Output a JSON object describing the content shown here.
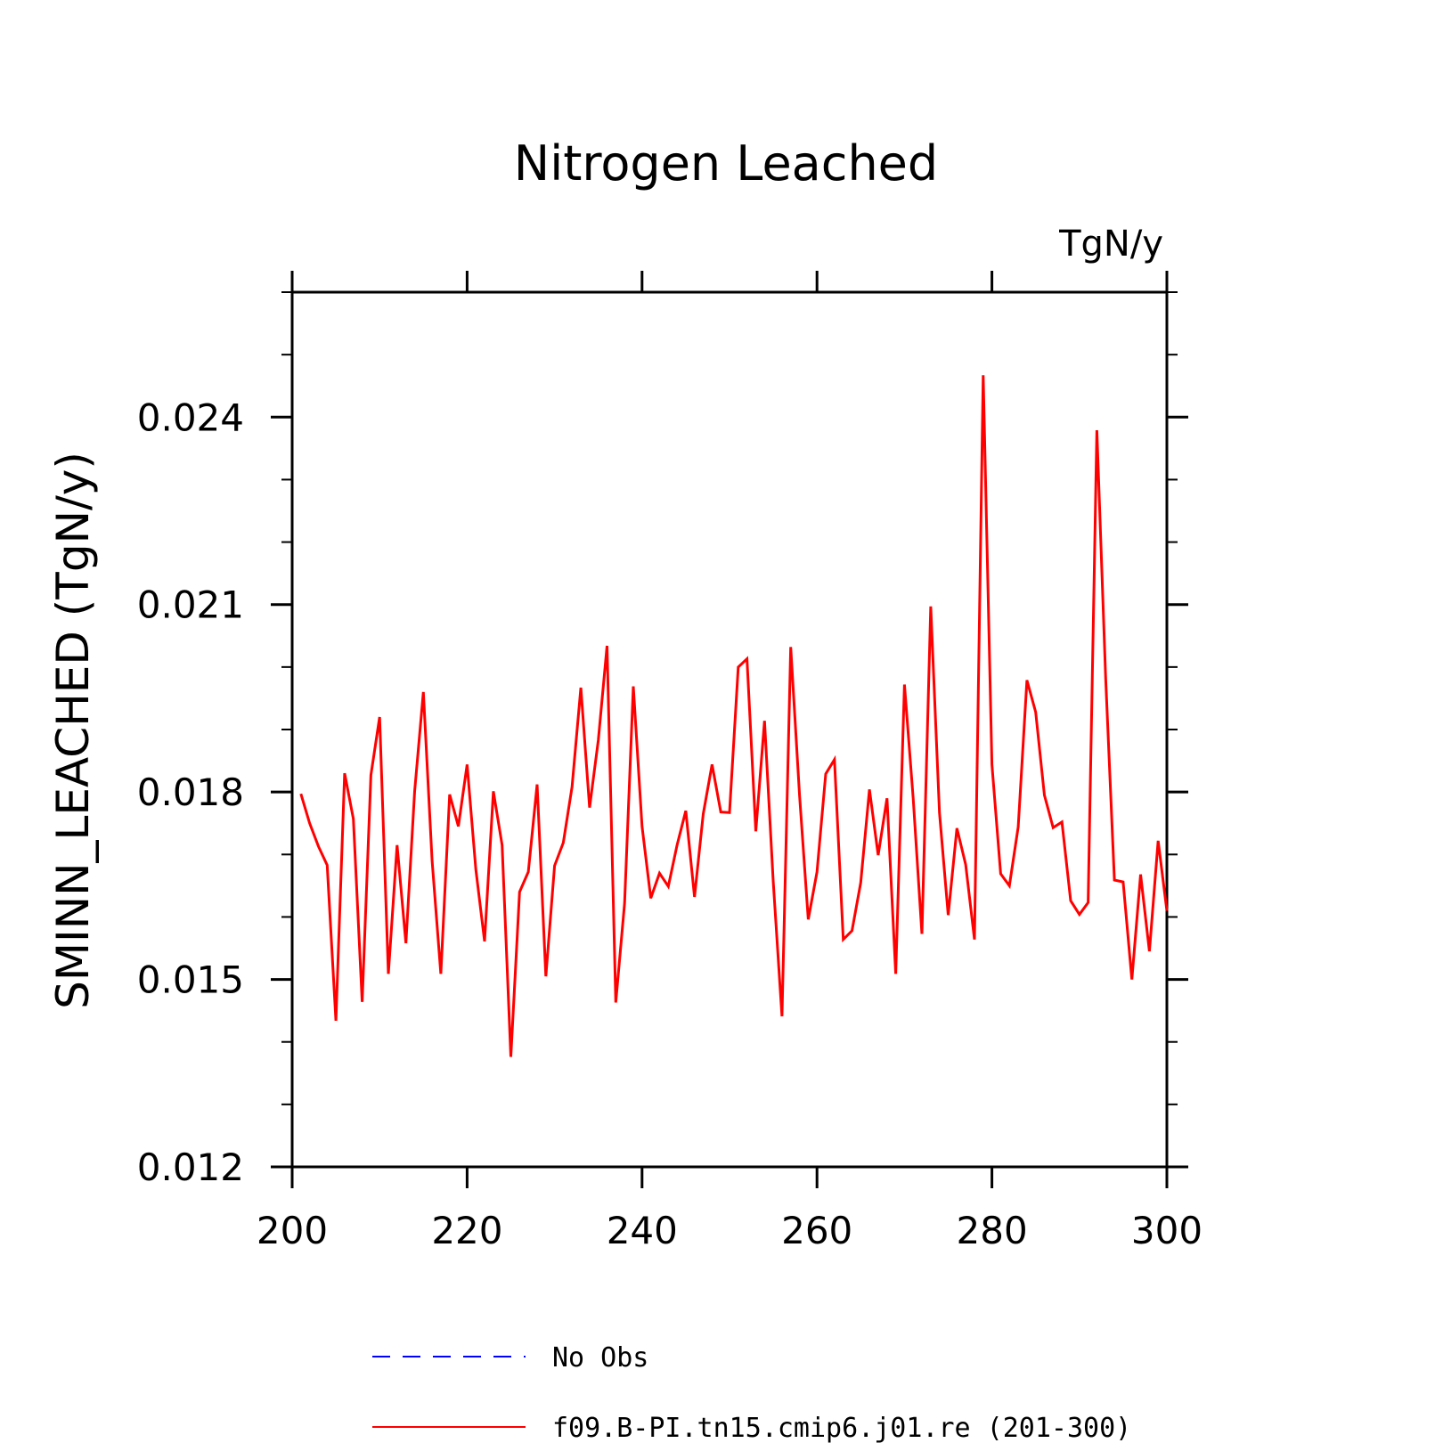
{
  "chart_data": {
    "type": "line",
    "title": "Nitrogen Leached",
    "units_label": "TgN/y",
    "ylabel": "SMINN_LEACHED   (TgN/y)",
    "xlabel": "",
    "xlim": [
      200,
      300
    ],
    "ylim": [
      0.012,
      0.026
    ],
    "x_ticks": [
      200,
      220,
      240,
      260,
      280,
      300
    ],
    "x_tick_labels": [
      "200",
      "220",
      "240",
      "260",
      "280",
      "300"
    ],
    "y_ticks": [
      0.012,
      0.015,
      0.018,
      0.021,
      0.024
    ],
    "y_tick_labels": [
      "0.012",
      "0.015",
      "0.018",
      "0.021",
      "0.024"
    ],
    "legend": [
      {
        "name": "No Obs",
        "color": "#0000ff",
        "style": "dashed"
      },
      {
        "name": "f09.B-PI.tn15.cmip6.j01.re (201-300)",
        "color": "#ff0000",
        "style": "solid"
      }
    ],
    "series": [
      {
        "name": "f09.B-PI.tn15.cmip6.j01.re (201-300)",
        "color": "#ff0000",
        "x": [
          201,
          202,
          203,
          204,
          205,
          206,
          207,
          208,
          209,
          210,
          211,
          212,
          213,
          214,
          215,
          216,
          217,
          218,
          219,
          220,
          221,
          222,
          223,
          224,
          225,
          226,
          227,
          228,
          229,
          230,
          231,
          232,
          233,
          234,
          235,
          236,
          237,
          238,
          239,
          240,
          241,
          242,
          243,
          244,
          245,
          246,
          247,
          248,
          249,
          250,
          251,
          252,
          253,
          254,
          255,
          256,
          257,
          258,
          259,
          260,
          261,
          262,
          263,
          264,
          265,
          266,
          267,
          268,
          269,
          270,
          271,
          272,
          273,
          274,
          275,
          276,
          277,
          278,
          279,
          280,
          281,
          282,
          283,
          284,
          285,
          286,
          287,
          288,
          289,
          290,
          291,
          292,
          293,
          294,
          295,
          296,
          297,
          298,
          299,
          300
        ],
        "values": [
          0.01797,
          0.0175,
          0.01713,
          0.01683,
          0.01434,
          0.0183,
          0.01757,
          0.01464,
          0.01827,
          0.0192,
          0.01509,
          0.01715,
          0.01558,
          0.01801,
          0.0196,
          0.0169,
          0.01509,
          0.01796,
          0.01745,
          0.01844,
          0.01676,
          0.01561,
          0.01801,
          0.01715,
          0.01376,
          0.0164,
          0.01672,
          0.01812,
          0.01505,
          0.01682,
          0.01719,
          0.01808,
          0.01967,
          0.01775,
          0.01883,
          0.02034,
          0.01463,
          0.01622,
          0.01969,
          0.01745,
          0.0163,
          0.0167,
          0.01649,
          0.01715,
          0.0177,
          0.01632,
          0.01765,
          0.01844,
          0.01768,
          0.01767,
          0.02,
          0.02013,
          0.01737,
          0.01914,
          0.01656,
          0.01441,
          0.02032,
          0.01795,
          0.01596,
          0.01672,
          0.01829,
          0.01852,
          0.01564,
          0.01578,
          0.01655,
          0.01804,
          0.01699,
          0.0179,
          0.01509,
          0.01972,
          0.0179,
          0.01573,
          0.02097,
          0.01767,
          0.01603,
          0.01742,
          0.01684,
          0.01564,
          0.02467,
          0.01844,
          0.01669,
          0.0165,
          0.01744,
          0.01979,
          0.01928,
          0.01795,
          0.01743,
          0.01752,
          0.01626,
          0.01604,
          0.01623,
          0.02379,
          0.01982,
          0.01659,
          0.01656,
          0.015,
          0.01668,
          0.01545,
          0.01722,
          0.0161
        ]
      }
    ]
  }
}
